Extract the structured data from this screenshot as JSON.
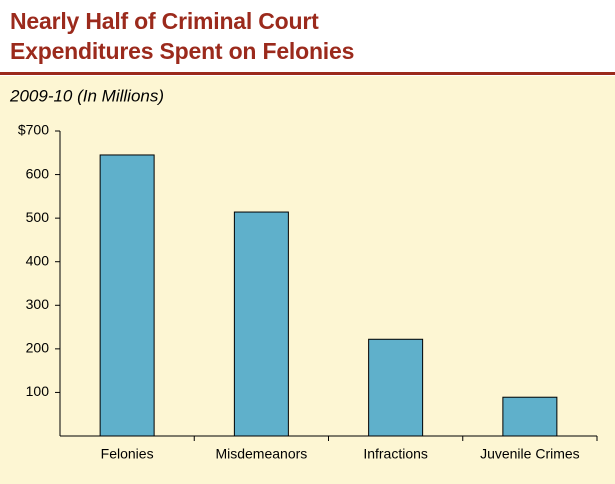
{
  "chart_data": {
    "type": "bar",
    "title": "Nearly Half of Criminal Court Expenditures Spent on Felonies",
    "subtitle": "2009-10 (In Millions)",
    "categories": [
      "Felonies",
      "Misdemeanors",
      "Infractions",
      "Juvenile Crimes"
    ],
    "values": [
      645,
      514,
      222,
      89
    ],
    "color": "#5fb0cb",
    "ylim": [
      0,
      700
    ],
    "yticks": [
      100,
      200,
      300,
      400,
      500,
      600,
      {
        "value": 700,
        "label": "$700"
      }
    ],
    "grid": false
  }
}
